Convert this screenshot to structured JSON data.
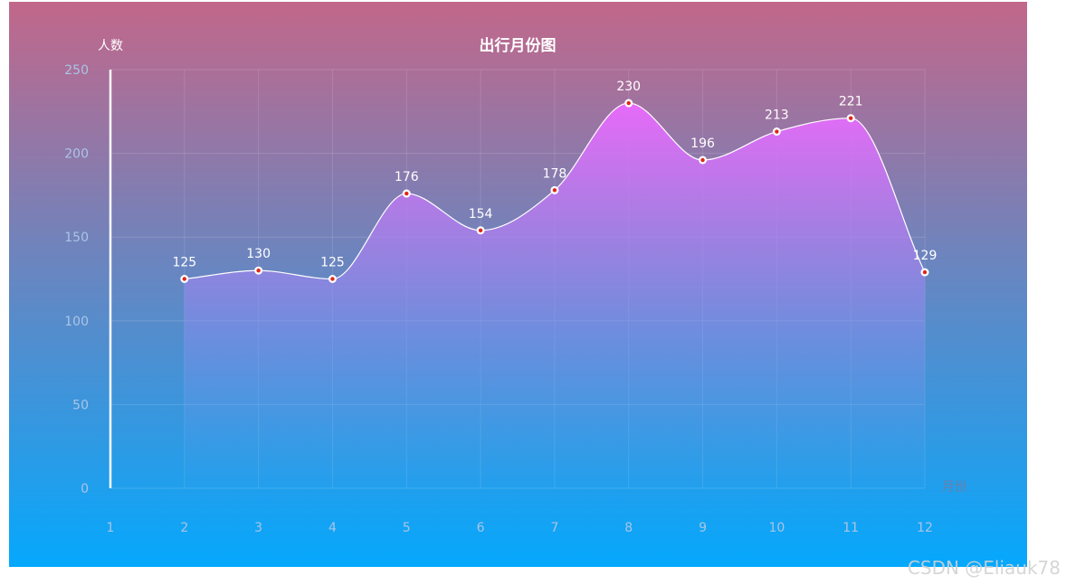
{
  "chart_data": {
    "type": "area",
    "title": "出行月份图",
    "xlabel": "月份",
    "ylabel": "人数",
    "categories": [
      "1",
      "2",
      "3",
      "4",
      "5",
      "6",
      "7",
      "8",
      "9",
      "10",
      "11",
      "12"
    ],
    "series": [
      {
        "values": [
          null,
          125,
          130,
          125,
          176,
          154,
          178,
          230,
          196,
          213,
          221,
          129
        ]
      }
    ],
    "ylim": [
      0,
      250
    ],
    "yticks": [
      0,
      50,
      100,
      150,
      200,
      250
    ],
    "grid": true,
    "smooth": true,
    "colors": {
      "bg_top": "#c2678a",
      "bg_bottom": "#05a8fd",
      "area_top": "#e76af9",
      "area_bottom": "#57a5ef",
      "line": "#ffffff",
      "point": "#e0261b",
      "axis_y": "#ffffff",
      "ticklabel": "#a9c5e6"
    }
  },
  "watermark": "CSDN @Eliauk78"
}
